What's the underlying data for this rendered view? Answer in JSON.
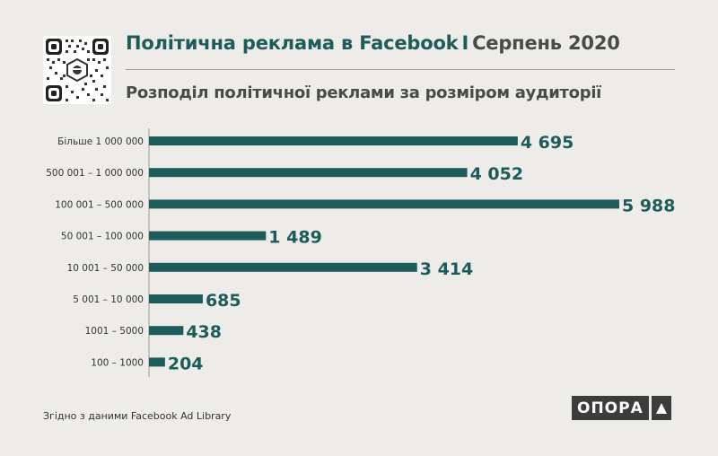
{
  "header": {
    "title_main": "Політична реклама в Facebook",
    "title_separator": "I",
    "title_date": "Серпень 2020",
    "subtitle": "Розподіл політичної реклами за розміром аудиторії"
  },
  "colors": {
    "bar": "#1e5b5b",
    "value_text": "#1e5b5b",
    "category_text": "#333333",
    "background": "#edece8"
  },
  "chart_data": {
    "type": "bar",
    "orientation": "horizontal",
    "title": "Розподіл політичної реклами за розміром аудиторії",
    "categories": [
      "Більше 1 000 000",
      "500 001 – 1 000 000",
      "100 001 – 500 000",
      "50 001 – 100 000",
      "10 001 – 50 000",
      "5 001 – 10 000",
      "1001 – 5000",
      "100 – 1000"
    ],
    "values": [
      4695,
      4052,
      5988,
      1489,
      3414,
      685,
      438,
      204
    ],
    "value_labels": [
      "4 695",
      "4 052",
      "5 988",
      "1 489",
      "3 414",
      "685",
      "438",
      "204"
    ],
    "xlim": [
      0,
      5988
    ],
    "xlabel": "",
    "ylabel": "",
    "grid": false
  },
  "footer": {
    "source": "Згідно з даними  Facebook Ad Library",
    "logo_text": "ОПОРА"
  },
  "icons": {
    "qr": "qr-code-icon",
    "logo_mark": "triangle-up-icon"
  }
}
